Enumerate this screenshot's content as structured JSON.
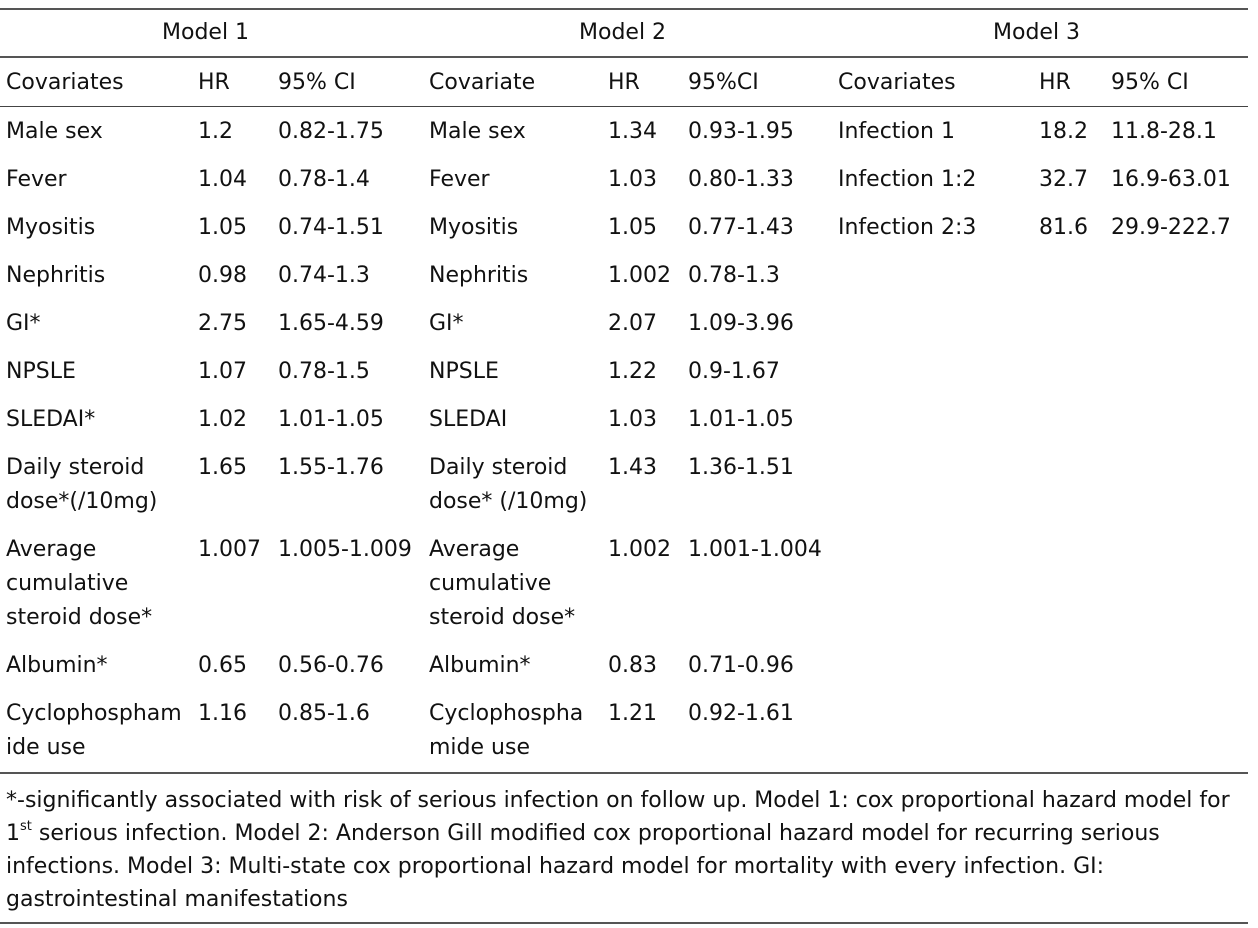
{
  "table": {
    "groups": [
      {
        "title": "Model 1",
        "headers": [
          "Covariates",
          "HR",
          "95% CI"
        ],
        "rows": [
          [
            "Male sex",
            "1.2",
            "0.82-1.75"
          ],
          [
            "Fever",
            "1.04",
            "0.78-1.4"
          ],
          [
            "Myositis",
            "1.05",
            "0.74-1.51"
          ],
          [
            "Nephritis",
            "0.98",
            "0.74-1.3"
          ],
          [
            "GI*",
            "2.75",
            "1.65-4.59"
          ],
          [
            "NPSLE",
            "1.07",
            "0.78-1.5"
          ],
          [
            "SLEDAI*",
            "1.02",
            "1.01-1.05"
          ],
          [
            "Daily steroid\ndose*(/10mg)",
            "1.65",
            "1.55-1.76"
          ],
          [
            "Average\ncumulative\nsteroid dose*",
            "1.007",
            "1.005-1.009"
          ],
          [
            "Albumin*",
            "0.65",
            "0.56-0.76"
          ],
          [
            "Cyclophospham\nide use",
            "1.16",
            "0.85-1.6"
          ]
        ]
      },
      {
        "title": "Model 2",
        "headers": [
          "Covariate",
          "HR",
          "95%CI"
        ],
        "rows": [
          [
            "Male sex",
            "1.34",
            "0.93-1.95"
          ],
          [
            "Fever",
            "1.03",
            "0.80-1.33"
          ],
          [
            "Myositis",
            "1.05",
            "0.77-1.43"
          ],
          [
            "Nephritis",
            "1.002",
            "0.78-1.3"
          ],
          [
            "GI*",
            "2.07",
            "1.09-3.96"
          ],
          [
            "NPSLE",
            "1.22",
            "0.9-1.67"
          ],
          [
            "SLEDAI",
            "1.03",
            "1.01-1.05"
          ],
          [
            "Daily steroid\ndose* (/10mg)",
            "1.43",
            "1.36-1.51"
          ],
          [
            "Average\ncumulative\nsteroid dose*",
            "1.002",
            "1.001-1.004"
          ],
          [
            "Albumin*",
            "0.83",
            "0.71-0.96"
          ],
          [
            "Cyclophospha\nmide use",
            "1.21",
            "0.92-1.61"
          ]
        ]
      },
      {
        "title": "Model 3",
        "headers": [
          "Covariates",
          "HR",
          "95% CI"
        ],
        "rows": [
          [
            "Infection 1",
            "18.2",
            "11.8-28.1"
          ],
          [
            "Infection 1:2",
            "32.7",
            "16.9-63.01"
          ],
          [
            "Infection 2:3",
            "81.6",
            "29.9-222.7"
          ]
        ]
      }
    ]
  },
  "footnote": {
    "part1": "*-significantly associated with risk of serious infection on follow up. Model 1: cox proportional hazard model for 1",
    "sup": "st",
    "part2": " serious infection. Model 2: Anderson Gill modified cox proportional hazard model for recurring serious infections. Model 3: Multi-state cox proportional hazard model for mortality with every infection. GI: gastrointestinal manifestations"
  }
}
